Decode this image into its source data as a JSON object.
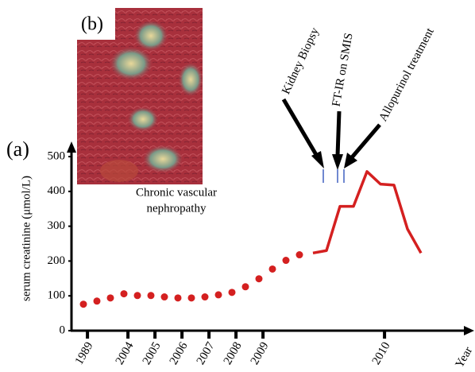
{
  "chart_data": {
    "type": "line",
    "panel_labels": [
      "(a)",
      "(b)"
    ],
    "inset_caption": [
      "Chronic vascular",
      "nephropathy"
    ],
    "y_label": "serum creatinine (μmol/L)",
    "x_label": "Year",
    "categories": [
      "1989",
      null,
      null,
      "2004",
      null,
      "2005",
      null,
      "2006",
      null,
      "2007",
      null,
      "2008",
      null,
      "2009",
      null,
      null,
      null,
      null,
      null,
      null,
      null,
      null,
      "2010",
      null,
      null,
      null
    ],
    "series": [
      {
        "color": "#d42020",
        "style": "dots",
        "values": [
          76,
          85,
          94,
          106,
          101,
          101,
          97,
          94,
          94,
          97,
          103,
          110,
          126,
          149,
          177,
          202,
          218,
          null,
          null,
          null,
          null,
          null,
          null,
          null,
          null,
          null
        ]
      },
      {
        "color": "#d42020",
        "style": "line",
        "values": [
          null,
          null,
          null,
          null,
          null,
          null,
          null,
          null,
          null,
          null,
          null,
          null,
          null,
          null,
          null,
          null,
          null,
          223,
          230,
          357,
          357,
          457,
          421,
          418,
          292,
          223
        ]
      }
    ],
    "ylim": [
      0,
      500
    ],
    "yticks": [
      0,
      100,
      200,
      300,
      400,
      500
    ],
    "annotations": [
      "Kidney Biopsy",
      "FT-IR on SMIS",
      "Allopurinol treatment"
    ]
  }
}
